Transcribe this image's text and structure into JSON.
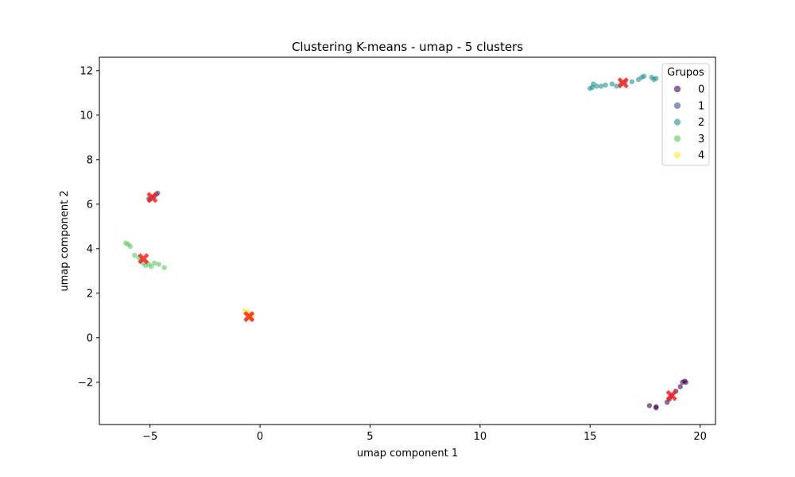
{
  "chart_data": {
    "type": "scatter",
    "title": "Clustering K-means - umap - 5 clusters",
    "xlabel": "umap component 1",
    "ylabel": "umap component 2",
    "xlim": [
      -7.3,
      20.7
    ],
    "ylim": [
      -3.9,
      12.6
    ],
    "xticks": [
      -5,
      0,
      5,
      10,
      15,
      20
    ],
    "yticks": [
      -2,
      0,
      2,
      4,
      6,
      8,
      10,
      12
    ],
    "xtick_labels": [
      "−5",
      "0",
      "5",
      "10",
      "15",
      "20"
    ],
    "ytick_labels": [
      "−2",
      "0",
      "2",
      "4",
      "6",
      "8",
      "10",
      "12"
    ],
    "grid": false,
    "legend": {
      "title": "Grupos",
      "placement": "top-right"
    },
    "series": [
      {
        "name": "0",
        "color": "#440154",
        "points": [
          [
            17.7,
            -3.05
          ],
          [
            18.0,
            -3.1
          ],
          [
            18.0,
            -3.15
          ],
          [
            18.5,
            -2.9
          ],
          [
            18.6,
            -2.75
          ],
          [
            18.7,
            -2.6
          ],
          [
            18.9,
            -2.4
          ],
          [
            19.1,
            -2.2
          ],
          [
            19.2,
            -2.0
          ],
          [
            19.3,
            -1.95
          ],
          [
            19.35,
            -2.0
          ]
        ]
      },
      {
        "name": "1",
        "color": "#3b528b",
        "points": [
          [
            -5.0,
            6.2
          ],
          [
            -4.9,
            6.3
          ],
          [
            -4.8,
            6.35
          ],
          [
            -4.7,
            6.45
          ],
          [
            -4.65,
            6.5
          ],
          [
            -5.05,
            6.25
          ]
        ]
      },
      {
        "name": "2",
        "color": "#21918c",
        "points": [
          [
            15.0,
            11.2
          ],
          [
            15.1,
            11.25
          ],
          [
            15.15,
            11.4
          ],
          [
            15.3,
            11.3
          ],
          [
            15.5,
            11.3
          ],
          [
            15.7,
            11.35
          ],
          [
            16.0,
            11.4
          ],
          [
            16.2,
            11.3
          ],
          [
            16.4,
            11.4
          ],
          [
            16.6,
            11.5
          ],
          [
            16.9,
            11.5
          ],
          [
            17.2,
            11.6
          ],
          [
            17.35,
            11.7
          ],
          [
            17.45,
            11.75
          ],
          [
            17.8,
            11.7
          ],
          [
            17.9,
            11.6
          ],
          [
            18.0,
            11.65
          ]
        ]
      },
      {
        "name": "3",
        "color": "#5ec962",
        "points": [
          [
            -6.1,
            4.25
          ],
          [
            -6.0,
            4.2
          ],
          [
            -5.9,
            4.1
          ],
          [
            -5.7,
            3.7
          ],
          [
            -5.5,
            3.6
          ],
          [
            -5.4,
            3.5
          ],
          [
            -5.3,
            3.35
          ],
          [
            -5.2,
            3.25
          ],
          [
            -5.05,
            3.3
          ],
          [
            -4.95,
            3.2
          ],
          [
            -4.8,
            3.35
          ],
          [
            -4.6,
            3.3
          ],
          [
            -4.35,
            3.15
          ]
        ]
      },
      {
        "name": "4",
        "color": "#fde725",
        "points": [
          [
            -0.7,
            1.2
          ],
          [
            -0.55,
            1.15
          ],
          [
            -0.45,
            1.0
          ],
          [
            -0.35,
            0.95
          ],
          [
            -0.6,
            0.9
          ],
          [
            -0.4,
            0.85
          ]
        ]
      }
    ],
    "centroids": {
      "color": "#ff2020",
      "marker": "x",
      "points": [
        [
          18.7,
          -2.6
        ],
        [
          -4.9,
          6.3
        ],
        [
          16.5,
          11.45
        ],
        [
          -5.3,
          3.55
        ],
        [
          -0.5,
          0.95
        ]
      ]
    }
  }
}
